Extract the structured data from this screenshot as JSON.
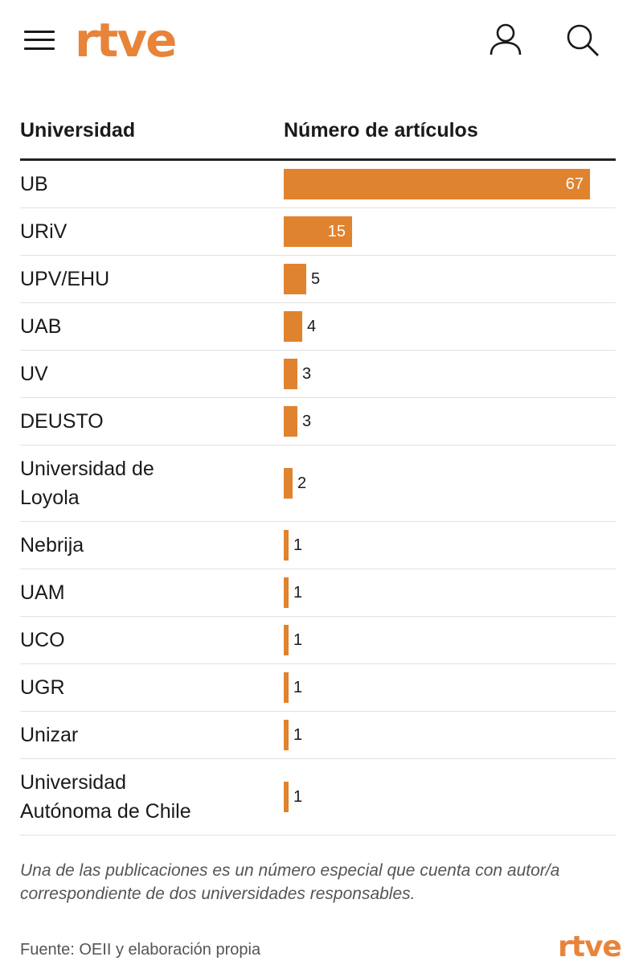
{
  "header": {
    "logo": "rtve",
    "icons": [
      "menu-icon",
      "user-icon",
      "search-icon"
    ]
  },
  "table": {
    "col_university": "Universidad",
    "col_articles": "Número de artículos"
  },
  "chart_data": {
    "type": "bar",
    "orientation": "horizontal",
    "xlabel": "Número de artículos",
    "ylabel": "Universidad",
    "categories": [
      "UB",
      "URiV",
      "UPV/EHU",
      "UAB",
      "UV",
      "DEUSTO",
      "Universidad de Loyola",
      "Nebrija",
      "UAM",
      "UCO",
      "UGR",
      "Unizar",
      "Universidad Autónoma de Chile"
    ],
    "category_lines": [
      [
        "UB"
      ],
      [
        "URiV"
      ],
      [
        "UPV/EHU"
      ],
      [
        "UAB"
      ],
      [
        "UV"
      ],
      [
        "DEUSTO"
      ],
      [
        "Universidad de",
        "Loyola"
      ],
      [
        "Nebrija"
      ],
      [
        "UAM"
      ],
      [
        "UCO"
      ],
      [
        "UGR"
      ],
      [
        "Unizar"
      ],
      [
        "Universidad",
        "Autónoma de Chile"
      ]
    ],
    "values": [
      67,
      15,
      5,
      4,
      3,
      3,
      2,
      1,
      1,
      1,
      1,
      1,
      1
    ],
    "value_labels": [
      "67",
      "15",
      "5",
      "4",
      "3",
      "3",
      "2",
      "1",
      "1",
      "1",
      "1",
      "1",
      "1"
    ],
    "xlim": [
      0,
      67
    ],
    "bar_color": "#e0832f"
  },
  "footer": {
    "note": "Una de las publicaciones es un número especial que cuenta con autor/a correspondiente de dos universidades responsables.",
    "source": "Fuente: OEII y elaboración propia",
    "logo": "rtve"
  },
  "colors": {
    "accent": "#e8843a",
    "bar": "#e0832f",
    "text": "#1a1a1a",
    "muted": "#555555"
  }
}
